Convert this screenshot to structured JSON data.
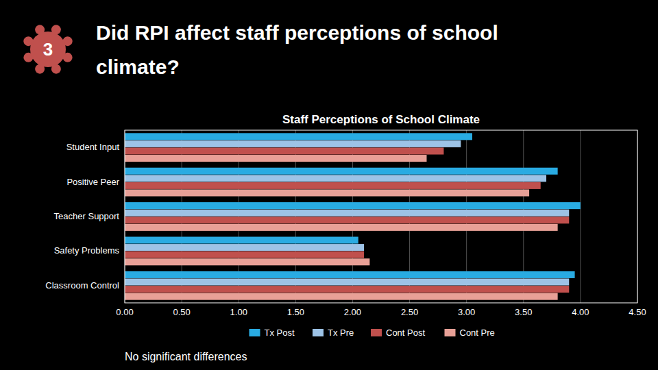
{
  "chart_data": {
    "type": "bar",
    "orientation": "horizontal",
    "title": "Staff Perceptions of School Climate",
    "annotations": [
      "3",
      "Did RPI affect staff perceptions of school",
      "climate?",
      "No significant differences"
    ],
    "categories": [
      "Classroom Control",
      "Safety Problems",
      "Teacher Support",
      "Positive Peer",
      "Student Input"
    ],
    "series": [
      {
        "name": "Tx Post",
        "color": "#29ABE2",
        "values": [
          3.95,
          2.05,
          4.0,
          3.8,
          3.05
        ]
      },
      {
        "name": "Tx Pre",
        "color": "#9DC3E6",
        "values": [
          3.9,
          2.1,
          3.9,
          3.7,
          2.95
        ]
      },
      {
        "name": "Cont Post",
        "color": "#C0504D",
        "values": [
          3.9,
          2.1,
          3.9,
          3.65,
          2.8
        ]
      },
      {
        "name": "Cont Pre",
        "color": "#E8A097",
        "values": [
          3.8,
          2.15,
          3.8,
          3.55,
          2.65
        ]
      }
    ],
    "xlim": [
      0,
      4.5
    ],
    "xticks": [
      {
        "value": 0.0,
        "label": "0.00"
      },
      {
        "value": 0.5,
        "label": "0.50"
      },
      {
        "value": 1.0,
        "label": "1.00"
      },
      {
        "value": 1.5,
        "label": "1.50"
      },
      {
        "value": 2.0,
        "label": "2.00"
      },
      {
        "value": 2.5,
        "label": "2.50"
      },
      {
        "value": 3.0,
        "label": "3.00"
      },
      {
        "value": 3.5,
        "label": "3.50"
      },
      {
        "value": 4.0,
        "label": "4.00"
      },
      {
        "value": 4.5,
        "label": "4.50"
      }
    ],
    "grid": true,
    "legend": "bottom"
  }
}
